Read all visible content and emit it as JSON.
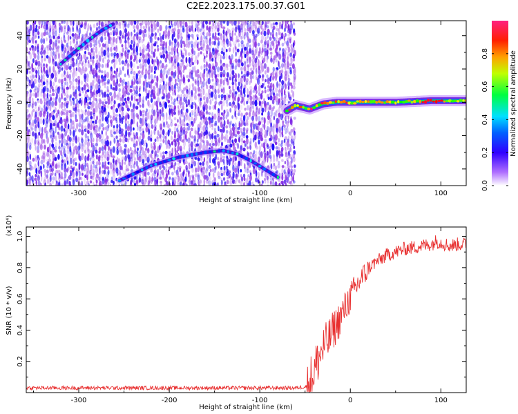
{
  "page_title": "C2E2.2023.175.00.37.G01",
  "chart_data": [
    {
      "type": "heatmap",
      "title": "",
      "xlabel": "Height of straight line (km)",
      "ylabel": "Frequency (Hz)",
      "xlim": [
        -358,
        128
      ],
      "ylim": [
        -50,
        49
      ],
      "xticks": [
        -300,
        -200,
        -100,
        0,
        100
      ],
      "yticks": [
        -40,
        -20,
        0,
        20,
        40
      ],
      "grid": false,
      "colorbar": {
        "label": "Normalized spectral amplitude",
        "ticks": [
          0.0,
          0.2,
          0.4,
          0.6,
          0.8
        ],
        "tick_labels": [
          "0.0",
          "0.2",
          "0.4",
          "0.6",
          "0.8"
        ],
        "range": [
          0,
          1
        ],
        "colors": [
          "#ffffff",
          "#8a2be2",
          "#0000ff",
          "#00e0ff",
          "#00ff00",
          "#ffff00",
          "#ff8000",
          "#ff0000",
          "#ff2080"
        ]
      },
      "noise_region": {
        "x_range": [
          -358,
          -62
        ],
        "typical_amplitude": 0.12
      },
      "features": [
        {
          "name": "carrier",
          "points": [
            [
              -70,
              -5
            ],
            [
              -60,
              -2
            ],
            [
              -45,
              -4
            ],
            [
              -30,
              -1
            ],
            [
              -15,
              0
            ],
            [
              0,
              0
            ],
            [
              50,
              0
            ],
            [
              90,
              1
            ],
            [
              128,
              1
            ]
          ],
          "peak_amplitude": 0.95
        },
        {
          "name": "lower-arc",
          "points": [
            [
              -255,
              -47
            ],
            [
              -220,
              -38
            ],
            [
              -190,
              -33
            ],
            [
              -160,
              -30
            ],
            [
              -140,
              -29
            ],
            [
              -125,
              -31
            ],
            [
              -110,
              -35
            ],
            [
              -95,
              -40
            ],
            [
              -80,
              -45
            ]
          ],
          "peak_amplitude": 0.35
        },
        {
          "name": "upper-arc",
          "points": [
            [
              -320,
              23
            ],
            [
              -305,
              30
            ],
            [
              -290,
              37
            ],
            [
              -275,
              43
            ],
            [
              -262,
              47
            ]
          ],
          "peak_amplitude": 0.35
        }
      ]
    },
    {
      "type": "line",
      "title": "",
      "xlabel": "Height of straight line (km)",
      "ylabel": "SNR (10 * v/v)",
      "ylabel_multiplier": "(x10⁴)",
      "xlim": [
        -358,
        128
      ],
      "ylim": [
        0,
        1.06
      ],
      "xticks": [
        -300,
        -200,
        -100,
        0,
        100
      ],
      "yticks": [
        0.2,
        0.4,
        0.6,
        0.8,
        1.0
      ],
      "ytick_labels": [
        "0.2",
        "0.4",
        "0.6",
        "0.8",
        "1.0"
      ],
      "grid": false,
      "series_color": "#e83030",
      "series": [
        {
          "x": [
            -358,
            -300,
            -200,
            -100,
            -60,
            -48,
            -42,
            -36,
            -30,
            -24,
            -18,
            -12,
            -6,
            0,
            6,
            12,
            18,
            24,
            30,
            40,
            50,
            60,
            70,
            80,
            90,
            95,
            100,
            110,
            120,
            128
          ],
          "y": [
            0.03,
            0.03,
            0.03,
            0.03,
            0.03,
            0.04,
            0.12,
            0.22,
            0.3,
            0.35,
            0.42,
            0.48,
            0.55,
            0.62,
            0.68,
            0.74,
            0.78,
            0.82,
            0.84,
            0.88,
            0.9,
            0.92,
            0.93,
            0.94,
            0.95,
            0.97,
            0.96,
            0.94,
            0.95,
            0.95
          ]
        }
      ]
    }
  ]
}
